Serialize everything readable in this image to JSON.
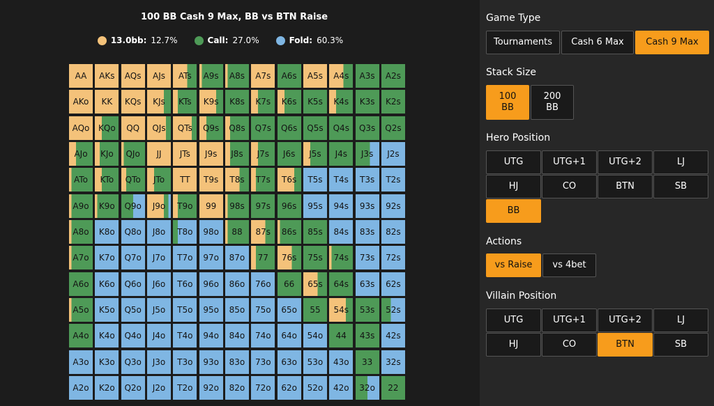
{
  "chart": {
    "title": "100 BB Cash 9 Max, BB vs BTN Raise",
    "legend": [
      {
        "key": "13.0bb:",
        "value": "12.7%",
        "color": "#f4c27a"
      },
      {
        "key": "Call:",
        "value": "27.0%",
        "color": "#4e9a57"
      },
      {
        "key": "Fold:",
        "value": "60.3%",
        "color": "#7fb6e3"
      }
    ]
  },
  "colors": {
    "raise": "#f4c27a",
    "call": "#4e9a57",
    "fold": "#7fb6e3",
    "accent": "#f79c1c"
  },
  "chart_data": {
    "type": "heatmap",
    "title": "100 BB Cash 9 Max, BB vs BTN Raise",
    "series": [
      "13.0bb",
      "Call",
      "Fold"
    ],
    "rows": [
      [
        [
          "AA",
          100,
          0
        ],
        [
          "AKs",
          100,
          0
        ],
        [
          "AQs",
          100,
          0
        ],
        [
          "AJs",
          100,
          0
        ],
        [
          "ATs",
          60,
          40
        ],
        [
          "A9s",
          10,
          90
        ],
        [
          "A8s",
          10,
          90
        ],
        [
          "A7s",
          100,
          0
        ],
        [
          "A6s",
          0,
          100
        ],
        [
          "A5s",
          100,
          0
        ],
        [
          "A4s",
          60,
          40
        ],
        [
          "A3s",
          0,
          100
        ],
        [
          "A2s",
          0,
          100
        ]
      ],
      [
        [
          "AKo",
          100,
          0
        ],
        [
          "KK",
          100,
          0
        ],
        [
          "KQs",
          100,
          0
        ],
        [
          "KJs",
          70,
          30
        ],
        [
          "KTs",
          20,
          80
        ],
        [
          "K9s",
          70,
          30
        ],
        [
          "K8s",
          0,
          100
        ],
        [
          "K7s",
          30,
          70
        ],
        [
          "K6s",
          30,
          70
        ],
        [
          "K5s",
          0,
          100
        ],
        [
          "K4s",
          30,
          70
        ],
        [
          "K3s",
          0,
          100
        ],
        [
          "K2s",
          0,
          100
        ]
      ],
      [
        [
          "AQo",
          100,
          0
        ],
        [
          "KQo",
          30,
          70
        ],
        [
          "QQ",
          100,
          0
        ],
        [
          "QJs",
          80,
          20
        ],
        [
          "QTs",
          80,
          20
        ],
        [
          "Q9s",
          30,
          70
        ],
        [
          "Q8s",
          20,
          80
        ],
        [
          "Q7s",
          0,
          100
        ],
        [
          "Q6s",
          0,
          100
        ],
        [
          "Q5s",
          0,
          100
        ],
        [
          "Q4s",
          0,
          100
        ],
        [
          "Q3s",
          0,
          100
        ],
        [
          "Q2s",
          0,
          100
        ]
      ],
      [
        [
          "AJo",
          30,
          70
        ],
        [
          "KJo",
          20,
          80
        ],
        [
          "QJo",
          10,
          90
        ],
        [
          "JJ",
          100,
          0
        ],
        [
          "JTs",
          100,
          0
        ],
        [
          "J9s",
          100,
          0
        ],
        [
          "J8s",
          20,
          80
        ],
        [
          "J7s",
          30,
          70
        ],
        [
          "J6s",
          0,
          100
        ],
        [
          "J5s",
          30,
          70
        ],
        [
          "J4s",
          0,
          100
        ],
        [
          "J3s",
          0,
          60
        ],
        [
          "J2s",
          0,
          0
        ]
      ],
      [
        [
          "ATo",
          10,
          90
        ],
        [
          "KTo",
          30,
          70
        ],
        [
          "QTo",
          20,
          80
        ],
        [
          "JTo",
          30,
          70
        ],
        [
          "TT",
          100,
          0
        ],
        [
          "T9s",
          100,
          0
        ],
        [
          "T8s",
          60,
          40
        ],
        [
          "T7s",
          20,
          80
        ],
        [
          "T6s",
          70,
          30
        ],
        [
          "T5s",
          0,
          0
        ],
        [
          "T4s",
          0,
          0
        ],
        [
          "T3s",
          0,
          0
        ],
        [
          "T2s",
          0,
          0
        ]
      ],
      [
        [
          "A9o",
          10,
          90
        ],
        [
          "K9o",
          10,
          90
        ],
        [
          "Q9o",
          0,
          50
        ],
        [
          "J9o",
          70,
          20
        ],
        [
          "T9o",
          20,
          80
        ],
        [
          "99",
          100,
          0
        ],
        [
          "98s",
          10,
          90
        ],
        [
          "97s",
          0,
          100
        ],
        [
          "96s",
          0,
          100
        ],
        [
          "95s",
          0,
          0
        ],
        [
          "94s",
          0,
          0
        ],
        [
          "93s",
          0,
          0
        ],
        [
          "92s",
          0,
          0
        ]
      ],
      [
        [
          "A8o",
          10,
          90
        ],
        [
          "K8o",
          0,
          0
        ],
        [
          "Q8o",
          0,
          0
        ],
        [
          "J8o",
          0,
          0
        ],
        [
          "T8o",
          0,
          20
        ],
        [
          "98o",
          0,
          0
        ],
        [
          "88",
          10,
          90
        ],
        [
          "87s",
          60,
          40
        ],
        [
          "86s",
          10,
          90
        ],
        [
          "85s",
          0,
          100
        ],
        [
          "84s",
          0,
          0
        ],
        [
          "83s",
          0,
          0
        ],
        [
          "82s",
          0,
          0
        ]
      ],
      [
        [
          "A7o",
          10,
          90
        ],
        [
          "K7o",
          0,
          0
        ],
        [
          "Q7o",
          0,
          0
        ],
        [
          "J7o",
          0,
          0
        ],
        [
          "T7o",
          0,
          0
        ],
        [
          "97o",
          0,
          0
        ],
        [
          "87o",
          0,
          0
        ],
        [
          "77",
          20,
          80
        ],
        [
          "76s",
          60,
          40
        ],
        [
          "75s",
          0,
          100
        ],
        [
          "74s",
          10,
          90
        ],
        [
          "73s",
          0,
          0
        ],
        [
          "72s",
          0,
          0
        ]
      ],
      [
        [
          "A6o",
          0,
          100
        ],
        [
          "K6o",
          0,
          0
        ],
        [
          "Q6o",
          0,
          0
        ],
        [
          "J6o",
          0,
          0
        ],
        [
          "T6o",
          0,
          0
        ],
        [
          "96o",
          0,
          0
        ],
        [
          "86o",
          0,
          0
        ],
        [
          "76o",
          0,
          0
        ],
        [
          "66",
          0,
          100
        ],
        [
          "65s",
          60,
          40
        ],
        [
          "64s",
          0,
          100
        ],
        [
          "63s",
          0,
          0
        ],
        [
          "62s",
          0,
          0
        ]
      ],
      [
        [
          "A5o",
          10,
          90
        ],
        [
          "K5o",
          0,
          0
        ],
        [
          "Q5o",
          0,
          0
        ],
        [
          "J5o",
          0,
          0
        ],
        [
          "T5o",
          0,
          0
        ],
        [
          "95o",
          0,
          0
        ],
        [
          "85o",
          0,
          0
        ],
        [
          "75o",
          0,
          0
        ],
        [
          "65o",
          0,
          0
        ],
        [
          "55",
          0,
          100
        ],
        [
          "54s",
          70,
          30
        ],
        [
          "53s",
          0,
          100
        ],
        [
          "52s",
          0,
          40
        ]
      ],
      [
        [
          "A4o",
          0,
          100
        ],
        [
          "K4o",
          0,
          0
        ],
        [
          "Q4o",
          0,
          0
        ],
        [
          "J4o",
          0,
          0
        ],
        [
          "T4o",
          0,
          0
        ],
        [
          "94o",
          0,
          0
        ],
        [
          "84o",
          0,
          0
        ],
        [
          "74o",
          0,
          0
        ],
        [
          "64o",
          0,
          0
        ],
        [
          "54o",
          0,
          0
        ],
        [
          "44",
          0,
          100
        ],
        [
          "43s",
          0,
          100
        ],
        [
          "42s",
          0,
          0
        ]
      ],
      [
        [
          "A3o",
          0,
          0
        ],
        [
          "K3o",
          0,
          0
        ],
        [
          "Q3o",
          0,
          0
        ],
        [
          "J3o",
          0,
          0
        ],
        [
          "T3o",
          0,
          0
        ],
        [
          "93o",
          0,
          0
        ],
        [
          "83o",
          0,
          0
        ],
        [
          "73o",
          0,
          0
        ],
        [
          "63o",
          0,
          0
        ],
        [
          "53o",
          0,
          0
        ],
        [
          "43o",
          0,
          0
        ],
        [
          "33",
          0,
          100
        ],
        [
          "32s",
          0,
          0
        ]
      ],
      [
        [
          "A2o",
          0,
          0
        ],
        [
          "K2o",
          0,
          0
        ],
        [
          "Q2o",
          0,
          0
        ],
        [
          "J2o",
          0,
          0
        ],
        [
          "T2o",
          0,
          0
        ],
        [
          "92o",
          0,
          0
        ],
        [
          "82o",
          0,
          0
        ],
        [
          "72o",
          0,
          0
        ],
        [
          "62o",
          0,
          0
        ],
        [
          "52o",
          0,
          0
        ],
        [
          "42o",
          0,
          0
        ],
        [
          "32o",
          0,
          50
        ],
        [
          "22",
          0,
          100
        ]
      ]
    ]
  },
  "sidebar": {
    "game_type": {
      "label": "Game Type",
      "options": [
        "Tournaments",
        "Cash 6 Max",
        "Cash 9 Max"
      ],
      "selected": "Cash 9 Max"
    },
    "stack_size": {
      "label": "Stack Size",
      "options": [
        "100\nBB",
        "200\nBB"
      ],
      "selected": "100\nBB"
    },
    "hero_position": {
      "label": "Hero Position",
      "options": [
        "UTG",
        "UTG+1",
        "UTG+2",
        "LJ",
        "HJ",
        "CO",
        "BTN",
        "SB",
        "BB"
      ],
      "selected": "BB"
    },
    "actions": {
      "label": "Actions",
      "options": [
        "vs Raise",
        "vs 4bet"
      ],
      "selected": "vs Raise"
    },
    "villain_position": {
      "label": "Villain Position",
      "options": [
        "UTG",
        "UTG+1",
        "UTG+2",
        "LJ",
        "HJ",
        "CO",
        "BTN",
        "SB"
      ],
      "selected": "BTN"
    }
  }
}
